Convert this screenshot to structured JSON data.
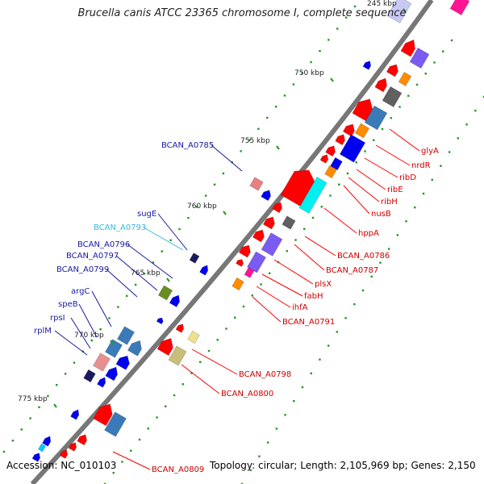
{
  "title": "Brucella canis ATCC 23365 chromosome I, complete sequence",
  "footer": {
    "accession": "Accession: NC_010103",
    "topology": "Topology: circular; Length: 2,105,969 bp; Genes: 2,150"
  },
  "ticks": [
    "245 kbp",
    "750 kbp",
    "755 kbp",
    "760 kbp",
    "765 kbp",
    "770 kbp",
    "775 kbp"
  ],
  "labels_left": [
    "BCAN_A0785",
    "sugE",
    "BCAN_A0793",
    "BCAN_A0796",
    "BCAN_A0797",
    "BCAN_A0799",
    "argC",
    "speB",
    "rpsI",
    "rplM"
  ],
  "labels_right": [
    "glyA",
    "nrdR",
    "ribD",
    "ribE",
    "ribH",
    "nusB",
    "hppA",
    "BCAN_A0786",
    "BCAN_A0787",
    "plsX",
    "fabH",
    "ihfA",
    "BCAN_A0791",
    "BCAN_A0798",
    "BCAN_A0800",
    "BCAN_A0809"
  ],
  "colors": {
    "red": "#ff0000",
    "blue": "#0000ee",
    "lightblue": "#00ccff",
    "steel": "#3a7ab8",
    "purple": "#7a5cf0",
    "orange": "#ff8c00",
    "gray": "#606060",
    "pink": "#ff1493",
    "olive": "#6b8e23",
    "khaki": "#d8cf86",
    "navy": "#1a1a5e"
  }
}
